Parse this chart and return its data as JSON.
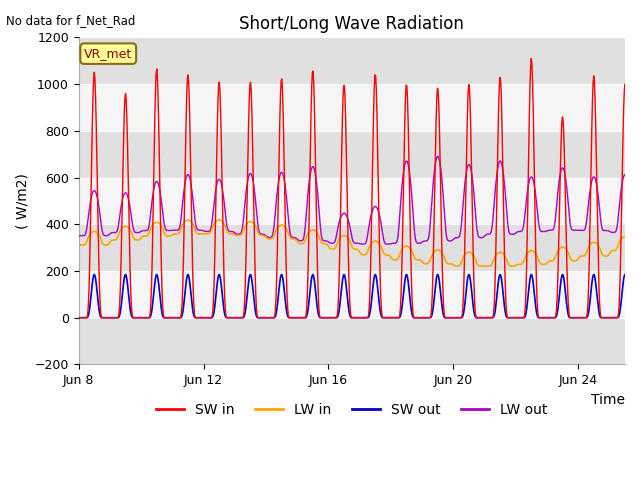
{
  "title": "Short/Long Wave Radiation",
  "ylabel": "( W/m2)",
  "xlabel": "Time",
  "top_left_text": "No data for f_Net_Rad",
  "legend_label_text": "VR_met",
  "ylim": [
    -200,
    1200
  ],
  "yticks": [
    -200,
    0,
    200,
    400,
    600,
    800,
    1000,
    1200
  ],
  "xtick_labels": [
    "Jun 8",
    "Jun 12",
    "Jun 16",
    "Jun 20",
    "Jun 24"
  ],
  "xtick_positions": [
    0,
    4,
    8,
    12,
    16
  ],
  "xlim": [
    0,
    17.5
  ],
  "num_days": 18,
  "sw_in_color": "#ff0000",
  "lw_in_color": "#ffa500",
  "sw_out_color": "#0000cc",
  "lw_out_color": "#aa00cc",
  "sw_in_peak": 1050,
  "sw_out_peak": 185,
  "lw_in_base": 290,
  "lw_out_base": 345,
  "lw_out_day_peak": 300,
  "title_fontsize": 12,
  "label_fontsize": 10,
  "tick_fontsize": 9,
  "legend_fontsize": 10,
  "background_color": "#ffffff",
  "plot_bg_color": "#e8e8e8",
  "band_color_light": "#f5f5f5",
  "band_color_dark": "#e0e0e0",
  "grid_color": "#ffffff"
}
